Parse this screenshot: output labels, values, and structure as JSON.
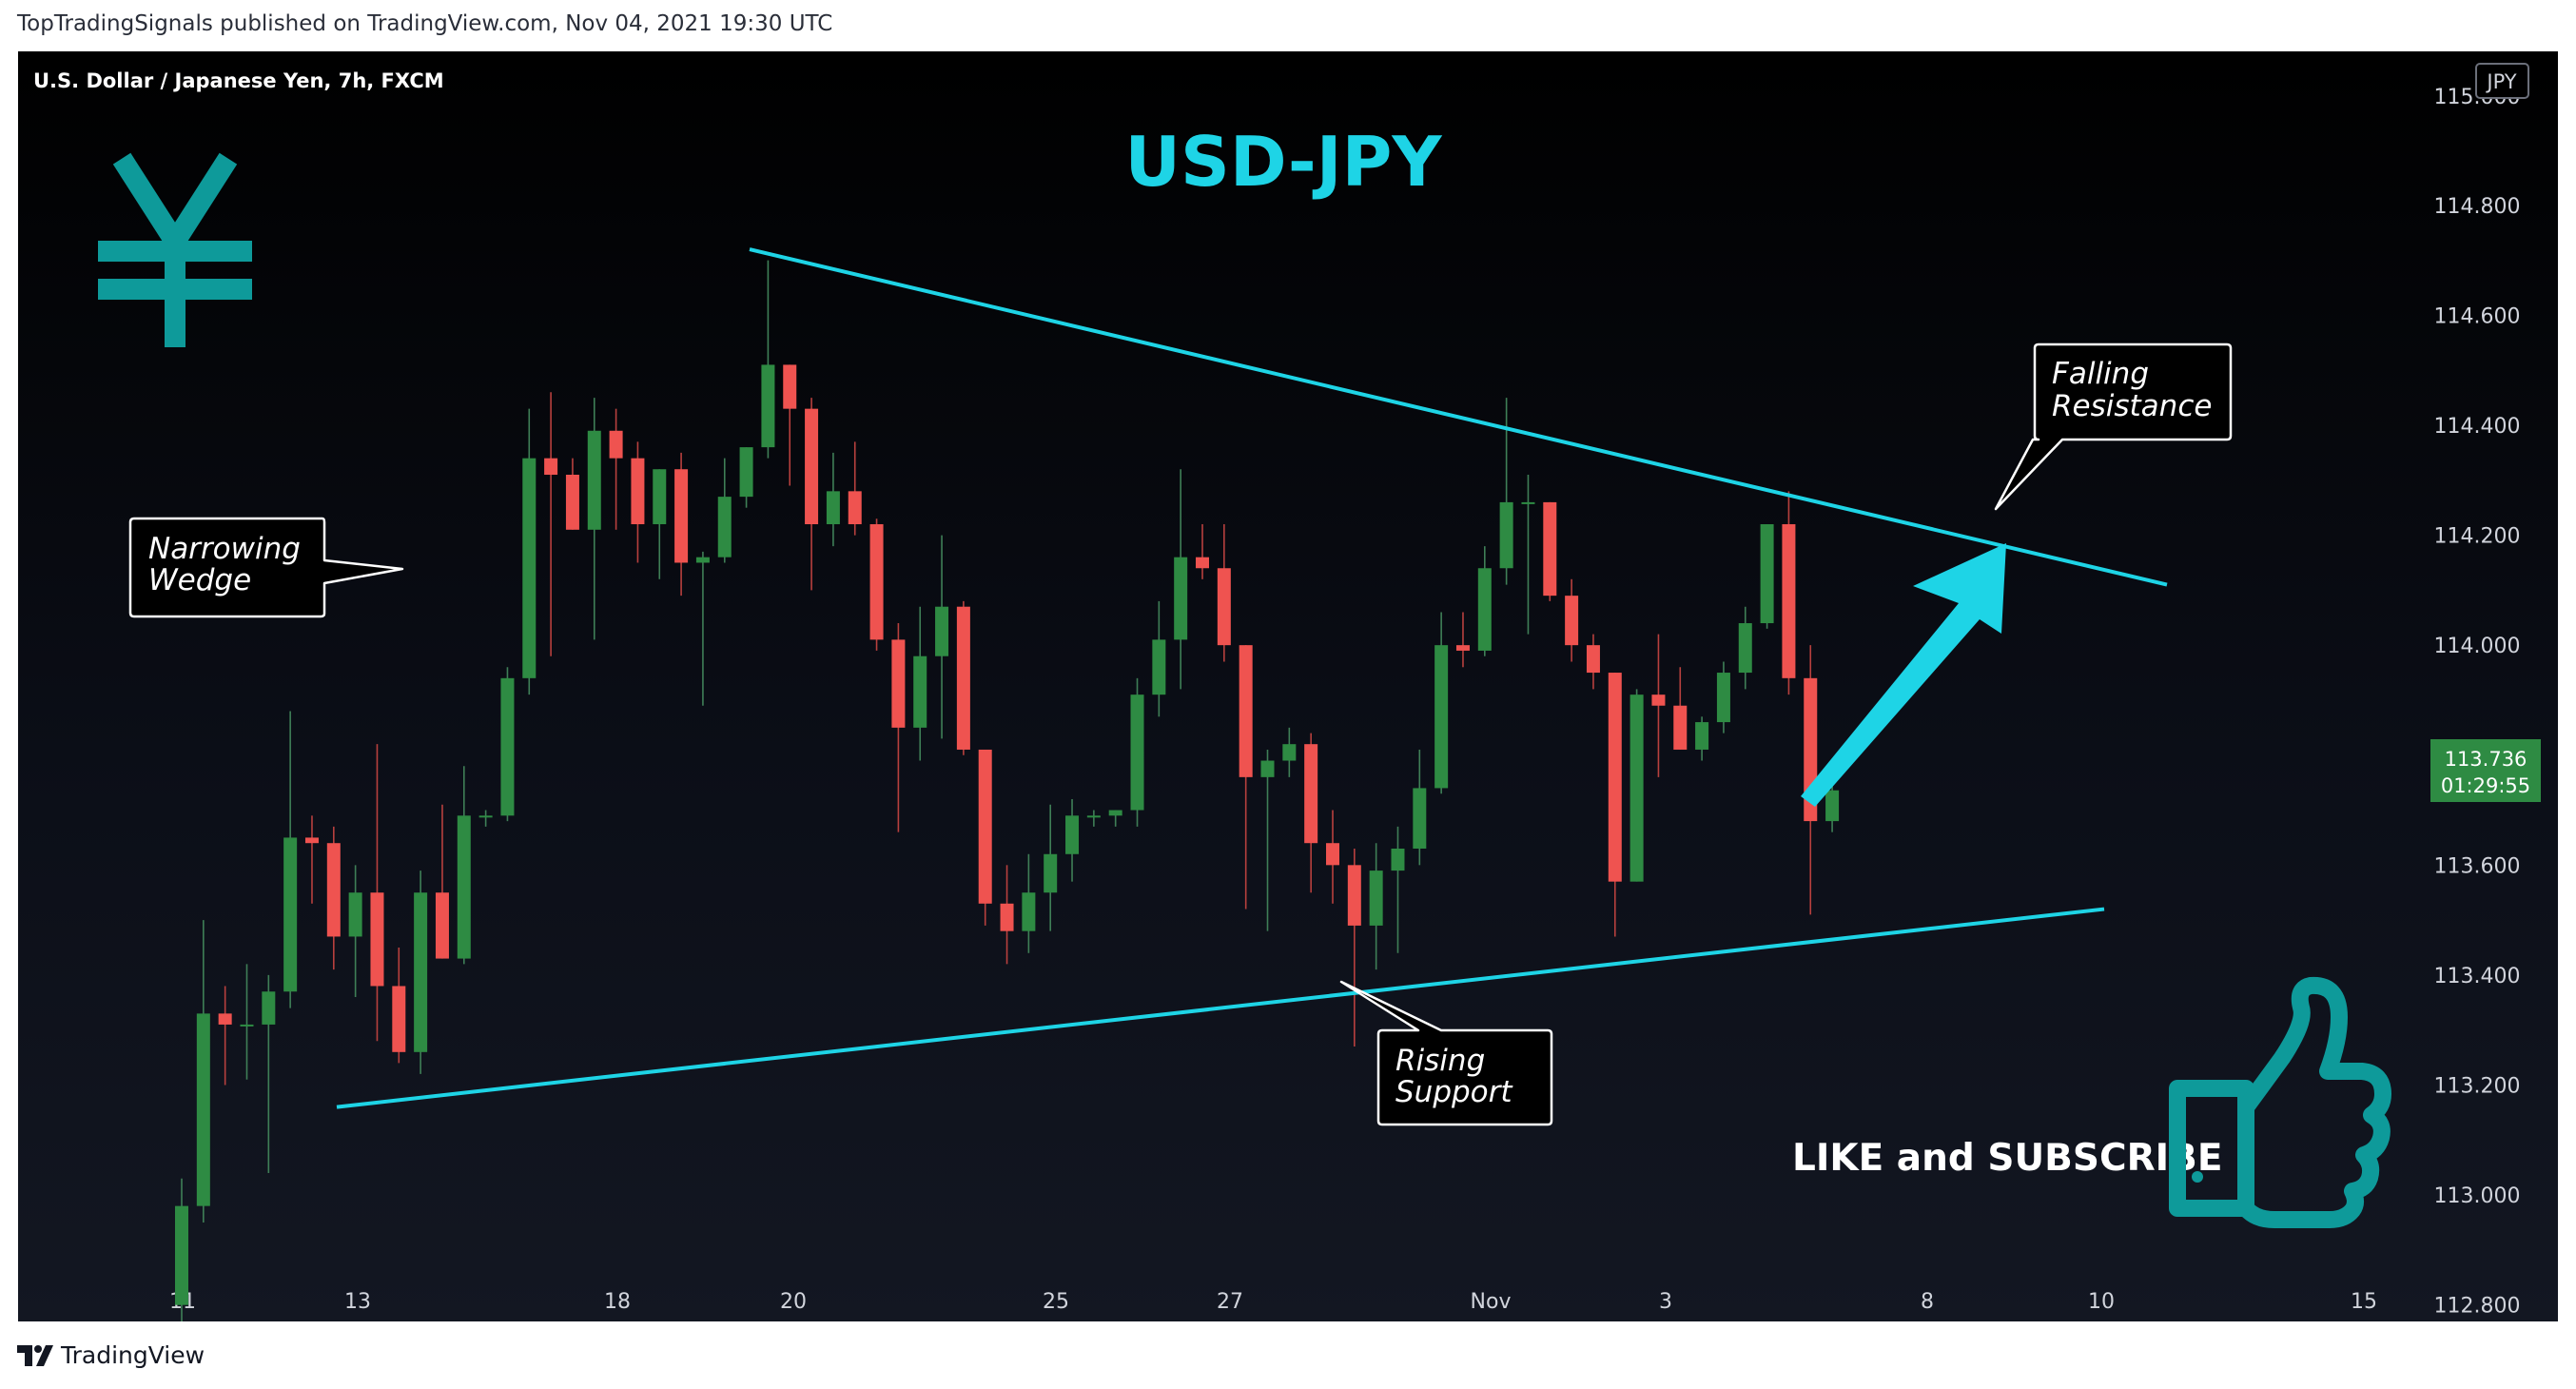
{
  "header": {
    "published_by": "TopTradingSignals published on TradingView.com, Nov 04, 2021 19:30 UTC"
  },
  "footer": {
    "brand": "TradingView"
  },
  "colors": {
    "up": "#26a69a",
    "up_body": "#2e8b43",
    "down": "#ef5350",
    "line": "#1ed4e6",
    "bg": "#000000",
    "price_tag": "#2e8b43"
  },
  "icons": {
    "currency": "yen-symbol-icon",
    "like": "thumbs-up-icon",
    "logo": "tradingview-logo-icon"
  },
  "chart_data": {
    "type": "candlestick",
    "symbol_label": "U.S. Dollar / Japanese Yen, 7h, FXCM",
    "title": "USD-JPY",
    "currency_tag": "JPY",
    "y_ticks": [
      "114.800",
      "114.600",
      "114.400",
      "114.200",
      "114.000",
      "113.800",
      "113.600",
      "113.400",
      "113.200",
      "113.000",
      "112.800"
    ],
    "y_top_partial": "115.000",
    "ylim": [
      112.77,
      115.08
    ],
    "x_ticks": [
      "11",
      "13",
      "18",
      "20",
      "25",
      "27",
      "Nov",
      "3",
      "8",
      "10",
      "15"
    ],
    "last_price": "113.736",
    "countdown": "01:29:55",
    "candles": [
      {
        "o": 112.8,
        "h": 113.03,
        "l": 112.76,
        "c": 112.98
      },
      {
        "o": 112.98,
        "h": 113.5,
        "l": 112.95,
        "c": 113.33
      },
      {
        "o": 113.33,
        "h": 113.38,
        "l": 113.2,
        "c": 113.31
      },
      {
        "o": 113.31,
        "h": 113.42,
        "l": 113.21,
        "c": 113.31
      },
      {
        "o": 113.31,
        "h": 113.4,
        "l": 113.04,
        "c": 113.37
      },
      {
        "o": 113.37,
        "h": 113.88,
        "l": 113.34,
        "c": 113.65
      },
      {
        "o": 113.65,
        "h": 113.69,
        "l": 113.53,
        "c": 113.64
      },
      {
        "o": 113.64,
        "h": 113.67,
        "l": 113.41,
        "c": 113.47
      },
      {
        "o": 113.47,
        "h": 113.6,
        "l": 113.36,
        "c": 113.55
      },
      {
        "o": 113.55,
        "h": 113.82,
        "l": 113.28,
        "c": 113.38
      },
      {
        "o": 113.38,
        "h": 113.45,
        "l": 113.24,
        "c": 113.26
      },
      {
        "o": 113.26,
        "h": 113.59,
        "l": 113.22,
        "c": 113.55
      },
      {
        "o": 113.55,
        "h": 113.71,
        "l": 113.43,
        "c": 113.43
      },
      {
        "o": 113.43,
        "h": 113.78,
        "l": 113.42,
        "c": 113.69
      },
      {
        "o": 113.69,
        "h": 113.7,
        "l": 113.67,
        "c": 113.69
      },
      {
        "o": 113.69,
        "h": 113.96,
        "l": 113.68,
        "c": 113.94
      },
      {
        "o": 113.94,
        "h": 114.43,
        "l": 113.91,
        "c": 114.34
      },
      {
        "o": 114.34,
        "h": 114.46,
        "l": 113.98,
        "c": 114.31
      },
      {
        "o": 114.31,
        "h": 114.34,
        "l": 114.21,
        "c": 114.21
      },
      {
        "o": 114.21,
        "h": 114.45,
        "l": 114.01,
        "c": 114.39
      },
      {
        "o": 114.39,
        "h": 114.43,
        "l": 114.21,
        "c": 114.34
      },
      {
        "o": 114.34,
        "h": 114.37,
        "l": 114.15,
        "c": 114.22
      },
      {
        "o": 114.22,
        "h": 114.32,
        "l": 114.12,
        "c": 114.32
      },
      {
        "o": 114.32,
        "h": 114.35,
        "l": 114.09,
        "c": 114.15
      },
      {
        "o": 114.15,
        "h": 114.17,
        "l": 113.89,
        "c": 114.16
      },
      {
        "o": 114.16,
        "h": 114.34,
        "l": 114.15,
        "c": 114.27
      },
      {
        "o": 114.27,
        "h": 114.36,
        "l": 114.25,
        "c": 114.36
      },
      {
        "o": 114.36,
        "h": 114.7,
        "l": 114.34,
        "c": 114.51
      },
      {
        "o": 114.51,
        "h": 114.51,
        "l": 114.29,
        "c": 114.43
      },
      {
        "o": 114.43,
        "h": 114.45,
        "l": 114.1,
        "c": 114.22
      },
      {
        "o": 114.22,
        "h": 114.35,
        "l": 114.18,
        "c": 114.28
      },
      {
        "o": 114.28,
        "h": 114.37,
        "l": 114.2,
        "c": 114.22
      },
      {
        "o": 114.22,
        "h": 114.23,
        "l": 113.99,
        "c": 114.01
      },
      {
        "o": 114.01,
        "h": 114.04,
        "l": 113.66,
        "c": 113.85
      },
      {
        "o": 113.85,
        "h": 114.07,
        "l": 113.79,
        "c": 113.98
      },
      {
        "o": 113.98,
        "h": 114.2,
        "l": 113.83,
        "c": 114.07
      },
      {
        "o": 114.07,
        "h": 114.08,
        "l": 113.8,
        "c": 113.81
      },
      {
        "o": 113.81,
        "h": 113.81,
        "l": 113.49,
        "c": 113.53
      },
      {
        "o": 113.53,
        "h": 113.6,
        "l": 113.42,
        "c": 113.48
      },
      {
        "o": 113.48,
        "h": 113.62,
        "l": 113.44,
        "c": 113.55
      },
      {
        "o": 113.55,
        "h": 113.71,
        "l": 113.48,
        "c": 113.62
      },
      {
        "o": 113.62,
        "h": 113.72,
        "l": 113.57,
        "c": 113.69
      },
      {
        "o": 113.69,
        "h": 113.7,
        "l": 113.67,
        "c": 113.69
      },
      {
        "o": 113.69,
        "h": 113.7,
        "l": 113.67,
        "c": 113.7
      },
      {
        "o": 113.7,
        "h": 113.94,
        "l": 113.67,
        "c": 113.91
      },
      {
        "o": 113.91,
        "h": 114.08,
        "l": 113.87,
        "c": 114.01
      },
      {
        "o": 114.01,
        "h": 114.32,
        "l": 113.92,
        "c": 114.16
      },
      {
        "o": 114.16,
        "h": 114.22,
        "l": 114.12,
        "c": 114.14
      },
      {
        "o": 114.14,
        "h": 114.22,
        "l": 113.97,
        "c": 114.0
      },
      {
        "o": 114.0,
        "h": 114.0,
        "l": 113.52,
        "c": 113.76
      },
      {
        "o": 113.76,
        "h": 113.81,
        "l": 113.48,
        "c": 113.79
      },
      {
        "o": 113.79,
        "h": 113.85,
        "l": 113.76,
        "c": 113.82
      },
      {
        "o": 113.82,
        "h": 113.84,
        "l": 113.55,
        "c": 113.64
      },
      {
        "o": 113.64,
        "h": 113.7,
        "l": 113.53,
        "c": 113.6
      },
      {
        "o": 113.6,
        "h": 113.63,
        "l": 113.27,
        "c": 113.49
      },
      {
        "o": 113.49,
        "h": 113.64,
        "l": 113.41,
        "c": 113.59
      },
      {
        "o": 113.59,
        "h": 113.67,
        "l": 113.44,
        "c": 113.63
      },
      {
        "o": 113.63,
        "h": 113.81,
        "l": 113.6,
        "c": 113.74
      },
      {
        "o": 113.74,
        "h": 114.06,
        "l": 113.73,
        "c": 114.0
      },
      {
        "o": 114.0,
        "h": 114.06,
        "l": 113.96,
        "c": 113.99
      },
      {
        "o": 113.99,
        "h": 114.18,
        "l": 113.98,
        "c": 114.14
      },
      {
        "o": 114.14,
        "h": 114.45,
        "l": 114.11,
        "c": 114.26
      },
      {
        "o": 114.26,
        "h": 114.31,
        "l": 114.02,
        "c": 114.26
      },
      {
        "o": 114.26,
        "h": 114.26,
        "l": 114.08,
        "c": 114.09
      },
      {
        "o": 114.09,
        "h": 114.12,
        "l": 113.97,
        "c": 114.0
      },
      {
        "o": 114.0,
        "h": 114.02,
        "l": 113.92,
        "c": 113.95
      },
      {
        "o": 113.95,
        "h": 113.95,
        "l": 113.47,
        "c": 113.57
      },
      {
        "o": 113.57,
        "h": 113.92,
        "l": 113.57,
        "c": 113.91
      },
      {
        "o": 113.91,
        "h": 114.02,
        "l": 113.76,
        "c": 113.89
      },
      {
        "o": 113.89,
        "h": 113.96,
        "l": 113.81,
        "c": 113.81
      },
      {
        "o": 113.81,
        "h": 113.87,
        "l": 113.79,
        "c": 113.86
      },
      {
        "o": 113.86,
        "h": 113.97,
        "l": 113.84,
        "c": 113.95
      },
      {
        "o": 113.95,
        "h": 114.07,
        "l": 113.92,
        "c": 114.04
      },
      {
        "o": 114.04,
        "h": 114.22,
        "l": 114.03,
        "c": 114.22
      },
      {
        "o": 114.22,
        "h": 114.28,
        "l": 113.91,
        "c": 113.94
      },
      {
        "o": 113.94,
        "h": 114.0,
        "l": 113.51,
        "c": 113.68
      },
      {
        "o": 113.68,
        "h": 113.79,
        "l": 113.66,
        "c": 113.736
      }
    ],
    "series": [
      {
        "name": "Falling Resistance",
        "x": [
          0,
          1
        ],
        "y": [
          114.72,
          114.11
        ]
      },
      {
        "name": "Rising Support",
        "x": [
          0,
          1
        ],
        "y": [
          113.16,
          113.52
        ]
      }
    ],
    "annotations": [
      {
        "line1": "Narrowing",
        "line2": "Wedge"
      },
      {
        "line1": "Falling",
        "line2": "Resistance"
      },
      {
        "line1": "Rising",
        "line2": "Support"
      }
    ],
    "call_to_action": "LIKE and SUBSCRIBE"
  }
}
